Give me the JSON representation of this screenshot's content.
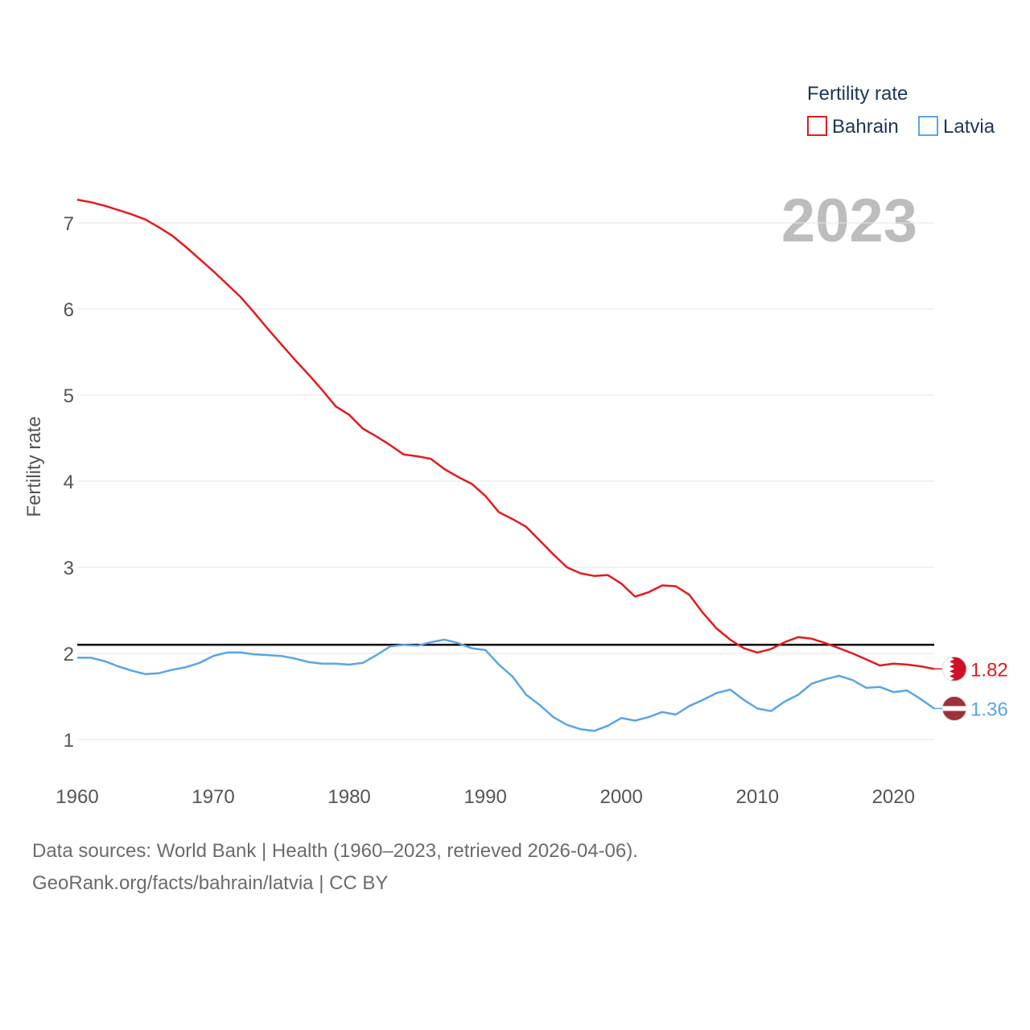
{
  "chart_data": {
    "type": "line",
    "legend_title": "Fertility rate",
    "ylabel": "Fertility rate",
    "year_label": "2023",
    "xlim": [
      1960,
      2023
    ],
    "ylim": [
      0.6,
      7.6
    ],
    "y_ticks": [
      "1",
      "2",
      "3",
      "4",
      "5",
      "6",
      "7"
    ],
    "x_ticks": [
      "1960",
      "1970",
      "1980",
      "1990",
      "2000",
      "2010",
      "2020"
    ],
    "reference_line": 2.1,
    "x": [
      1960,
      1961,
      1962,
      1963,
      1964,
      1965,
      1966,
      1967,
      1968,
      1969,
      1970,
      1971,
      1972,
      1973,
      1974,
      1975,
      1976,
      1977,
      1978,
      1979,
      1980,
      1981,
      1982,
      1983,
      1984,
      1985,
      1986,
      1987,
      1988,
      1989,
      1990,
      1991,
      1992,
      1993,
      1994,
      1995,
      1996,
      1997,
      1998,
      1999,
      2000,
      2001,
      2002,
      2003,
      2004,
      2005,
      2006,
      2007,
      2008,
      2009,
      2010,
      2011,
      2012,
      2013,
      2014,
      2015,
      2016,
      2017,
      2018,
      2019,
      2020,
      2021,
      2022,
      2023
    ],
    "series": [
      {
        "name": "Bahrain",
        "color": "#e41a1c",
        "end_label": "1.82",
        "values": [
          7.27,
          7.24,
          7.2,
          7.15,
          7.1,
          7.04,
          6.95,
          6.85,
          6.72,
          6.58,
          6.44,
          6.29,
          6.14,
          5.96,
          5.77,
          5.59,
          5.41,
          5.24,
          5.06,
          4.87,
          4.77,
          4.61,
          4.52,
          4.42,
          4.31,
          4.29,
          4.26,
          4.14,
          4.05,
          3.97,
          3.83,
          3.64,
          3.56,
          3.47,
          3.31,
          3.15,
          3.0,
          2.93,
          2.9,
          2.91,
          2.81,
          2.66,
          2.71,
          2.79,
          2.78,
          2.68,
          2.47,
          2.29,
          2.16,
          2.06,
          2.01,
          2.05,
          2.13,
          2.19,
          2.17,
          2.12,
          2.06,
          2.0,
          1.93,
          1.86,
          1.88,
          1.87,
          1.85,
          1.82
        ]
      },
      {
        "name": "Latvia",
        "color": "#5aa5e6",
        "end_label": "1.36",
        "values": [
          1.95,
          1.95,
          1.91,
          1.85,
          1.8,
          1.76,
          1.77,
          1.81,
          1.84,
          1.89,
          1.97,
          2.01,
          2.01,
          1.99,
          1.98,
          1.97,
          1.94,
          1.9,
          1.88,
          1.88,
          1.87,
          1.89,
          1.98,
          2.08,
          2.1,
          2.09,
          2.13,
          2.16,
          2.12,
          2.06,
          2.04,
          1.87,
          1.73,
          1.52,
          1.4,
          1.26,
          1.17,
          1.12,
          1.1,
          1.16,
          1.25,
          1.22,
          1.26,
          1.32,
          1.29,
          1.39,
          1.46,
          1.54,
          1.58,
          1.46,
          1.36,
          1.33,
          1.44,
          1.52,
          1.65,
          1.7,
          1.74,
          1.69,
          1.6,
          1.61,
          1.55,
          1.57,
          1.47,
          1.36
        ]
      }
    ]
  },
  "source": {
    "line1": "Data sources: World Bank | Health (1960–2023, retrieved 2026-04-06).",
    "line2": "GeoRank.org/facts/bahrain/latvia | CC BY"
  }
}
